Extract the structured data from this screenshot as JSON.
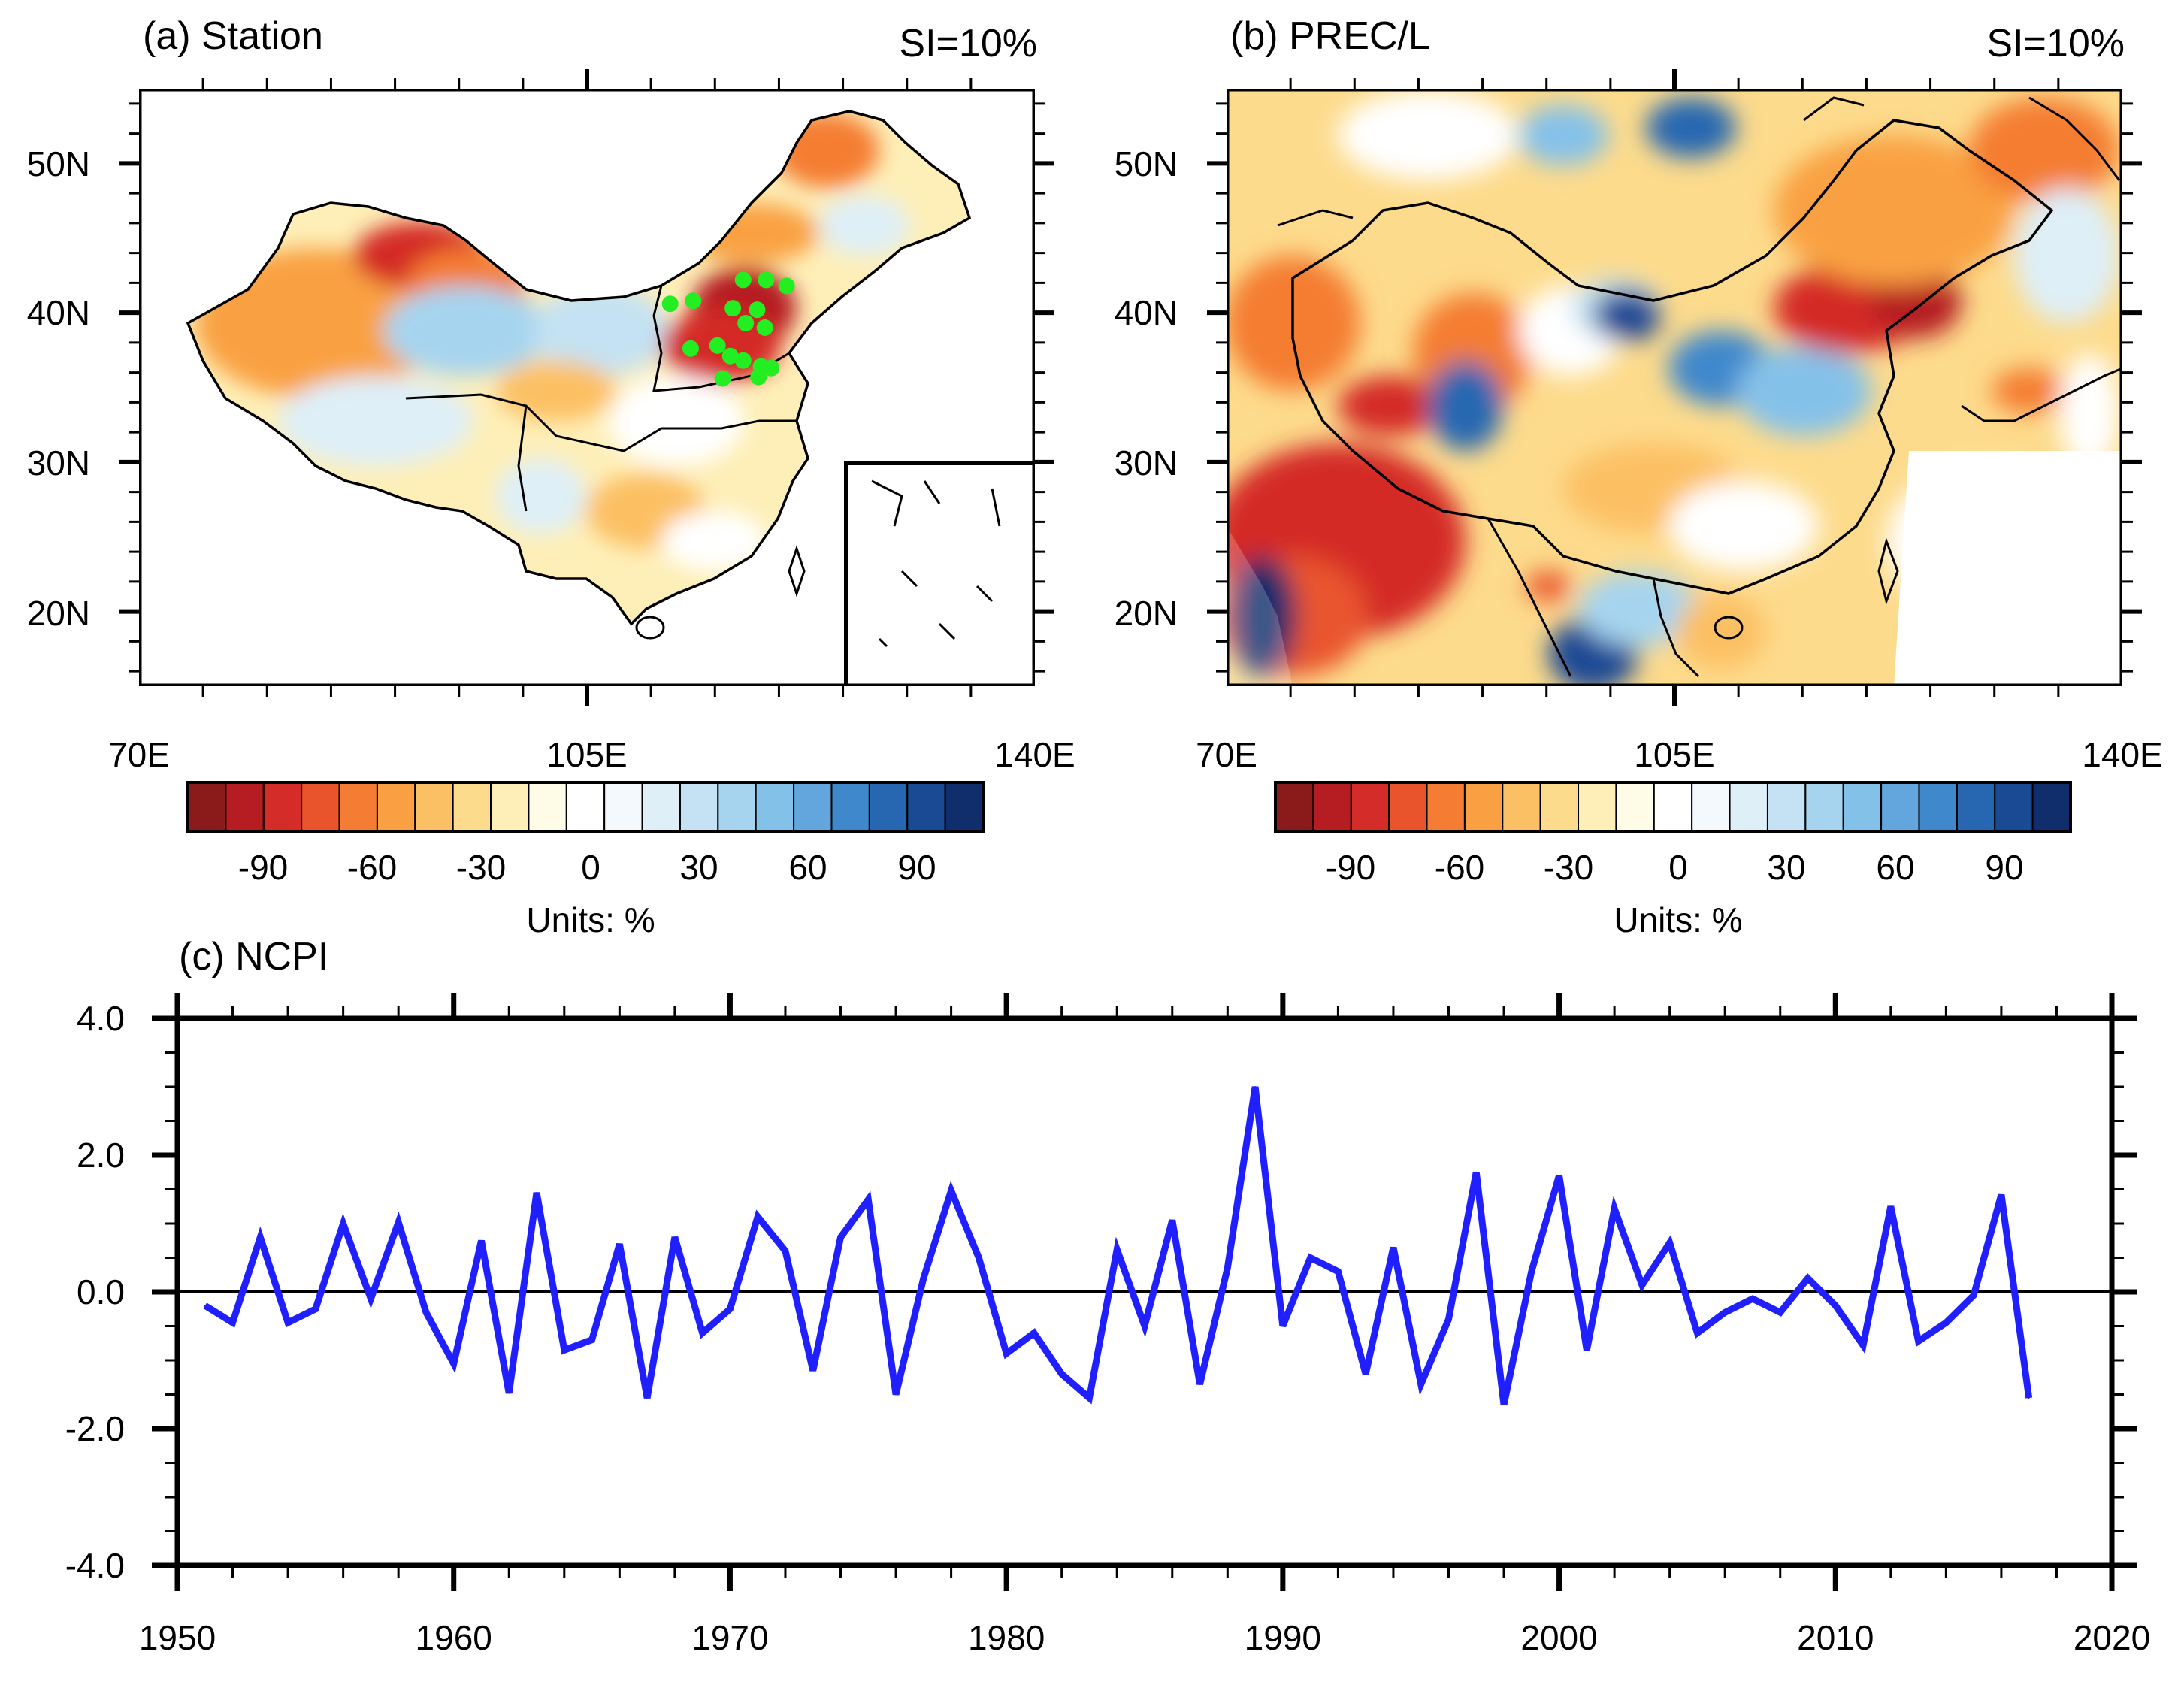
{
  "panel_a": {
    "title": "(a) Station",
    "si_label": "SI=10%",
    "lat_labels": [
      "50N",
      "40N",
      "30N",
      "20N"
    ],
    "lon_labels": [
      "70E",
      "105E",
      "140E"
    ],
    "colorbar_ticks": [
      "-90",
      "-60",
      "-30",
      "0",
      "30",
      "60",
      "90"
    ],
    "units": "Units: %",
    "station_marker_color": "#22ee22"
  },
  "panel_b": {
    "title": "(b) PREC/L",
    "si_label": "SI=10%",
    "lat_labels": [
      "50N",
      "40N",
      "30N",
      "20N"
    ],
    "lon_labels": [
      "70E",
      "105E",
      "140E"
    ],
    "colorbar_ticks": [
      "-90",
      "-60",
      "-30",
      "0",
      "30",
      "60",
      "90"
    ],
    "units": "Units: %"
  },
  "colorbar_colors": [
    "#8b1a1a",
    "#b51d22",
    "#d42c28",
    "#e9542d",
    "#f47d33",
    "#f9a142",
    "#fcc064",
    "#fddb8c",
    "#feefb8",
    "#fefbe6",
    "#ffffff",
    "#f3f9fd",
    "#deeff8",
    "#c4e2f3",
    "#a6d4ef",
    "#84c1e9",
    "#62a6dd",
    "#3f88cc",
    "#2767b1",
    "#1a4a94",
    "#0f2e6b"
  ],
  "chart_data": {
    "type": "line",
    "title": "(c) NCPI",
    "x": [
      1951,
      1952,
      1953,
      1954,
      1955,
      1956,
      1957,
      1958,
      1959,
      1960,
      1961,
      1962,
      1963,
      1964,
      1965,
      1966,
      1967,
      1968,
      1969,
      1970,
      1971,
      1972,
      1973,
      1974,
      1975,
      1976,
      1977,
      1978,
      1979,
      1980,
      1981,
      1982,
      1983,
      1984,
      1985,
      1986,
      1987,
      1988,
      1989,
      1990,
      1991,
      1992,
      1993,
      1994,
      1995,
      1996,
      1997,
      1998,
      1999,
      2000,
      2001,
      2002,
      2003,
      2004,
      2005,
      2006,
      2007,
      2008,
      2009,
      2010,
      2011,
      2012,
      2013,
      2014,
      2015,
      2016,
      2017
    ],
    "series": [
      {
        "name": "NCPI",
        "color": "#1f1fff",
        "values": [
          -0.2,
          -0.45,
          0.8,
          -0.45,
          -0.25,
          1.0,
          -0.1,
          1.02,
          -0.3,
          -1.05,
          0.75,
          -1.48,
          1.45,
          -0.85,
          -0.7,
          0.7,
          -1.55,
          0.8,
          -0.6,
          -0.25,
          1.1,
          0.6,
          -1.15,
          0.8,
          1.35,
          -1.5,
          0.2,
          1.48,
          0.5,
          -0.9,
          -0.6,
          -1.2,
          -1.55,
          0.62,
          -0.5,
          1.05,
          -1.35,
          0.35,
          3.0,
          -0.5,
          0.5,
          0.3,
          -1.2,
          0.65,
          -1.35,
          -0.4,
          1.75,
          -1.65,
          0.3,
          1.7,
          -0.85,
          1.22,
          0.1,
          0.72,
          -0.6,
          -0.3,
          -0.1,
          -0.3,
          0.2,
          -0.2,
          -0.78,
          1.25,
          -0.72,
          -0.45,
          -0.05,
          1.42,
          -1.55
        ]
      }
    ],
    "x_ticks": [
      "1950",
      "1960",
      "1970",
      "1980",
      "1990",
      "2000",
      "2010",
      "2020"
    ],
    "y_ticks": [
      "4.0",
      "2.0",
      "0.0",
      "-2.0",
      "-4.0"
    ],
    "xlim": [
      1950,
      2020
    ],
    "ylim": [
      -4,
      4
    ],
    "zero_line": true,
    "xlabel": "",
    "ylabel": ""
  }
}
